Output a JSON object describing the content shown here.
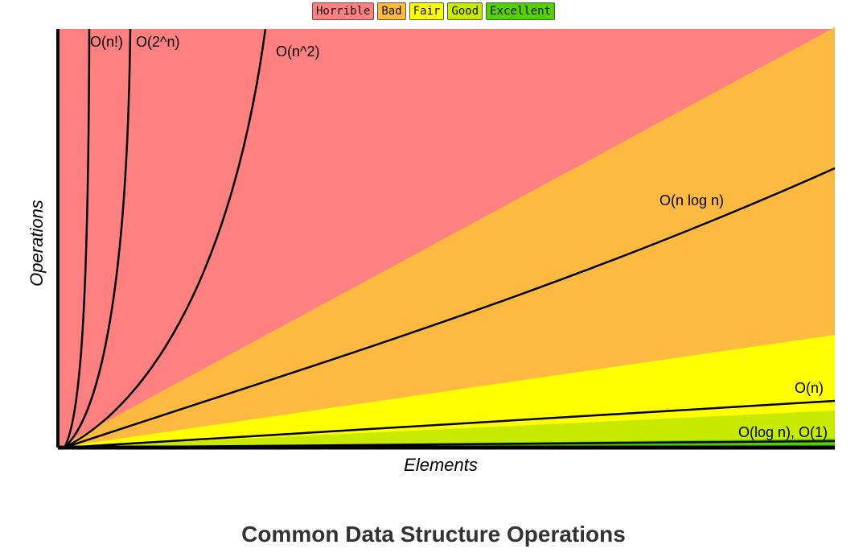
{
  "legend": [
    {
      "label": "Horrible",
      "color": "#ff8080"
    },
    {
      "label": "Bad",
      "color": "#fdb940"
    },
    {
      "label": "Fair",
      "color": "#ffff00"
    },
    {
      "label": "Good",
      "color": "#c8ea00"
    },
    {
      "label": "Excellent",
      "color": "#53d000"
    }
  ],
  "chart_data": {
    "type": "line",
    "xlabel": "Elements",
    "ylabel": "Operations",
    "regions": [
      {
        "name": "Horrible",
        "color": "#ff8080"
      },
      {
        "name": "Bad",
        "color": "#fdb940"
      },
      {
        "name": "Fair",
        "color": "#ffff00"
      },
      {
        "name": "Good",
        "color": "#c8ea00"
      },
      {
        "name": "Excellent",
        "color": "#53d000"
      }
    ],
    "curves": [
      {
        "label": "O(n!)",
        "complexity": "factorial"
      },
      {
        "label": "O(2^n)",
        "complexity": "exponential"
      },
      {
        "label": "O(n^2)",
        "complexity": "quadratic"
      },
      {
        "label": "O(n log n)",
        "complexity": "linearithmic"
      },
      {
        "label": "O(n)",
        "complexity": "linear"
      },
      {
        "label": "O(log n), O(1)",
        "complexity": "logarithmic-constant"
      }
    ]
  },
  "section_title": "Common Data Structure Operations"
}
